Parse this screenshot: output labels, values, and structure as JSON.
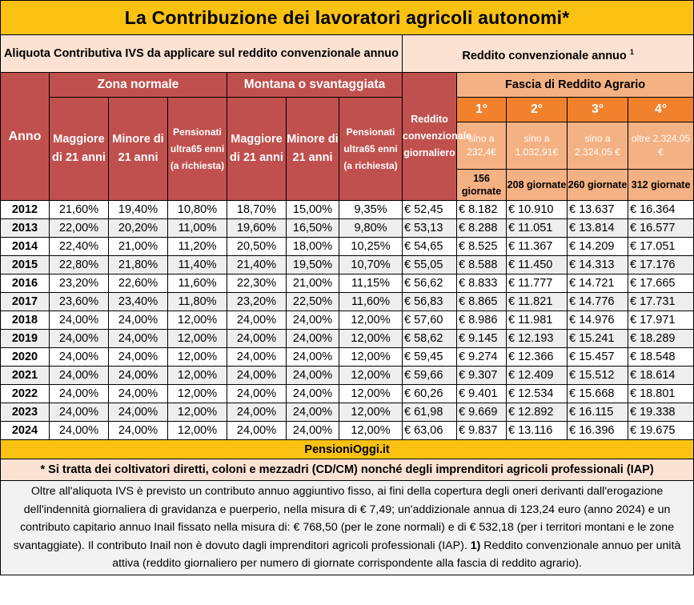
{
  "title": "La Contribuzione dei lavoratori agricoli autonomi*",
  "subheader": {
    "left": "Aliquota Contributiva IVS da applicare sul reddito convenzionale annuo",
    "right": "Reddito convenzionale annuo",
    "right_sup": "1"
  },
  "headers": {
    "anno": "Anno",
    "zona_normale": "Zona normale",
    "montana": "Montana o svantaggiata",
    "reddito_giornaliero": "Reddito convenzionale giornaliero",
    "fascia": "Fascia di Reddito Agrario",
    "maggiore_normale": "Maggiore di 21 anni",
    "minore_normale": "Minore di 21 anni",
    "pensionati_normale": "Pensionati ultra65 enni (a richiesta)",
    "maggiore_montana": "Maggiore di 21 anni",
    "minore_montana": "Minore di 21 anni",
    "pensionati_montana": "Pensionati ultra65 enni (a richiesta)",
    "fasce": [
      {
        "num": "1°",
        "range": "sino a 232,4€",
        "giornate": "156 giornate"
      },
      {
        "num": "2°",
        "range": "sino a 1.032,91€",
        "giornate": "208 giornate"
      },
      {
        "num": "3°",
        "range": "sino a 2.324,05 €",
        "giornate": "260 giornate"
      },
      {
        "num": "4°",
        "range": "oltre 2.324,05 €",
        "giornate": "312 giornate"
      }
    ]
  },
  "rows": [
    [
      "2012",
      "21,60%",
      "19,40%",
      "10,80%",
      "18,70%",
      "15,00%",
      "9,35%",
      "€ 52,45",
      "€ 8.182",
      "€ 10.910",
      "€ 13.637",
      "€ 16.364"
    ],
    [
      "2013",
      "22,00%",
      "20,20%",
      "11,00%",
      "19,60%",
      "16,50%",
      "9,80%",
      "€ 53,13",
      "€ 8.288",
      "€ 11.051",
      "€ 13.814",
      "€ 16.577"
    ],
    [
      "2014",
      "22,40%",
      "21,00%",
      "11,20%",
      "20,50%",
      "18,00%",
      "10,25%",
      "€ 54,65",
      "€ 8.525",
      "€ 11.367",
      "€ 14.209",
      "€ 17.051"
    ],
    [
      "2015",
      "22,80%",
      "21,80%",
      "11,40%",
      "21,40%",
      "19,50%",
      "10,70%",
      "€ 55,05",
      "€ 8.588",
      "€ 11.450",
      "€ 14.313",
      "€ 17.176"
    ],
    [
      "2016",
      "23,20%",
      "22,60%",
      "11,60%",
      "22,30%",
      "21,00%",
      "11,15%",
      "€ 56,62",
      "€ 8.833",
      "€ 11.777",
      "€ 14.721",
      "€ 17.665"
    ],
    [
      "2017",
      "23,60%",
      "23,40%",
      "11,80%",
      "23,20%",
      "22,50%",
      "11,60%",
      "€ 56,83",
      "€ 8.865",
      "€ 11.821",
      "€ 14.776",
      "€ 17.731"
    ],
    [
      "2018",
      "24,00%",
      "24,00%",
      "12,00%",
      "24,00%",
      "24,00%",
      "12,00%",
      "€ 57,60",
      "€ 8.986",
      "€ 11.981",
      "€ 14.976",
      "€ 17.971"
    ],
    [
      "2019",
      "24,00%",
      "24,00%",
      "12,00%",
      "24,00%",
      "24,00%",
      "12,00%",
      "€ 58,62",
      "€ 9.145",
      "€ 12.193",
      "€ 15.241",
      "€ 18.289"
    ],
    [
      "2020",
      "24,00%",
      "24,00%",
      "12,00%",
      "24,00%",
      "24,00%",
      "12,00%",
      "€ 59,45",
      "€ 9.274",
      "€ 12.366",
      "€ 15.457",
      "€ 18.548"
    ],
    [
      "2021",
      "24,00%",
      "24,00%",
      "12,00%",
      "24,00%",
      "24,00%",
      "12,00%",
      "€ 59,66",
      "€ 9.307",
      "€ 12.409",
      "€ 15.512",
      "€ 18.614"
    ],
    [
      "2022",
      "24,00%",
      "24,00%",
      "12,00%",
      "24,00%",
      "24,00%",
      "12,00%",
      "€ 60,26",
      "€ 9.401",
      "€ 12.534",
      "€ 15.668",
      "€ 18.801"
    ],
    [
      "2023",
      "24,00%",
      "24,00%",
      "12,00%",
      "24,00%",
      "24,00%",
      "12,00%",
      "€ 61,98",
      "€ 9.669",
      "€ 12.892",
      "€ 16.115",
      "€ 19.338"
    ],
    [
      "2024",
      "24,00%",
      "24,00%",
      "12,00%",
      "24,00%",
      "24,00%",
      "12,00%",
      "€ 63,06",
      "€ 9.837",
      "€ 13.116",
      "€ 16.396",
      "€ 19.675"
    ]
  ],
  "brand": "PensioniOggi.it",
  "footnote_star": "* Si tratta dei coltivatori diretti, coloni e mezzadri (CD/CM) nonché degli imprenditori agricoli professionali (IAP)",
  "note": {
    "text": "Oltre all'aliquota IVS è previsto un contributo annuo aggiuntivo fisso, ai fini della copertura degli oneri derivanti dall'erogazione dell'indennità giornaliera di gravidanza e puerperio, nella misura di € 7,49; un'addizionale annua di 123,24 euro (anno 2024) e un contributo capitario annuo Inail fissato nella misura di: € 768,50 (per le zone normali) e di € 532,18 (per i territori montani e le zone svantaggiate). Il contributo Inail non è dovuto dagli imprenditori agricoli professionali (IAP).",
    "ref": "1)",
    "ref_text": "Reddito convenzionale annuo per unità attiva (reddito giornaliero per numero di giornate corrispondente alla fascia di reddito agrario)."
  }
}
